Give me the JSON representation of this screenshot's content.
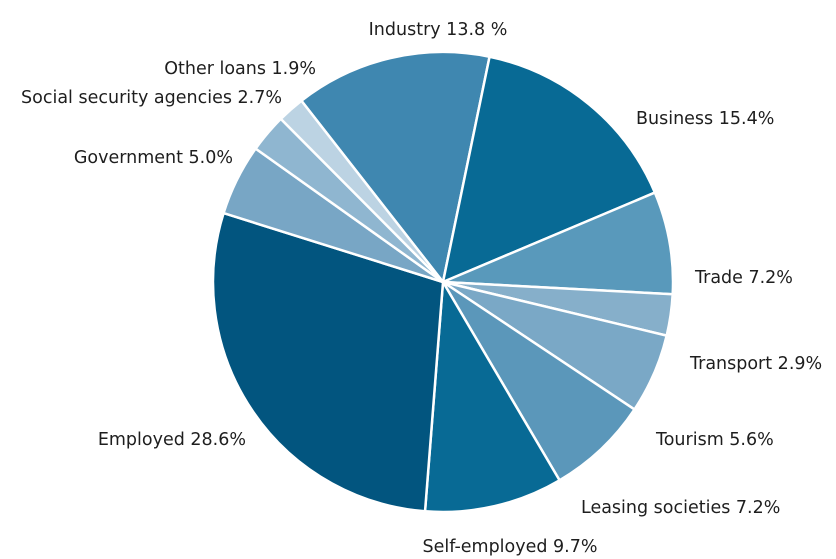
{
  "chart_data": {
    "type": "pie",
    "title": "",
    "unit": "%",
    "slices": [
      {
        "label": "Industry",
        "value": 13.8,
        "text": "Industry 13.8 %",
        "color": "#3f87b0"
      },
      {
        "label": "Business",
        "value": 15.4,
        "text": "Business 15.4%",
        "color": "#086a95"
      },
      {
        "label": "Trade",
        "value": 7.2,
        "text": "Trade 7.2%",
        "color": "#5999bb"
      },
      {
        "label": "Transport",
        "value": 2.9,
        "text": "Transport 2.9%",
        "color": "#86afca"
      },
      {
        "label": "Tourism",
        "value": 5.6,
        "text": "Tourism 5.6%",
        "color": "#7aa8c6"
      },
      {
        "label": "Leasing societies",
        "value": 7.2,
        "text": "Leasing societies 7.2%",
        "color": "#5b97ba"
      },
      {
        "label": "Self-employed",
        "value": 9.7,
        "text": "Self-employed 9.7%",
        "color": "#086a95"
      },
      {
        "label": "Employed",
        "value": 28.6,
        "text": "Employed 28.6%",
        "color": "#02557f"
      },
      {
        "label": "Government",
        "value": 5.0,
        "text": "Government 5.0%",
        "color": "#78a6c5"
      },
      {
        "label": "Social security agencies",
        "value": 2.7,
        "text": "Social security agencies 2.7%",
        "color": "#8fb6d0"
      },
      {
        "label": "Other loans",
        "value": 1.9,
        "text": "Other loans 1.9%",
        "color": "#bcd3e3"
      }
    ]
  }
}
